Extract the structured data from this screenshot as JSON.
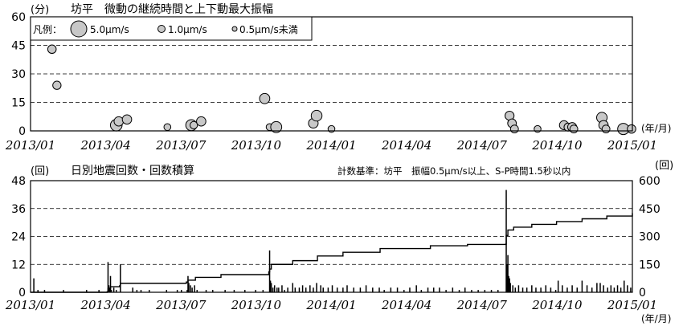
{
  "chart_data": [
    {
      "type": "scatter",
      "unit_label": "(分)",
      "title": "坊平　微動の継続時間と上下動最大振幅",
      "ylim": [
        0,
        60
      ],
      "yticks": [
        0,
        15,
        30,
        45,
        60
      ],
      "x_axis_unit": "(年/月)",
      "x_tick_labels": [
        "2013/01",
        "2013/04",
        "2013/07",
        "2013/10",
        "2014/01",
        "2014/04",
        "2014/07",
        "2014/10",
        "2015/01"
      ],
      "xlim": [
        "2013-01-01",
        "2015-01-01"
      ],
      "grid": "dashed-horizontal",
      "legend": {
        "prefix": "凡例：",
        "items": [
          {
            "label": "5.0μm/s",
            "amplitude": 5.0
          },
          {
            "label": "1.0μm/s",
            "amplitude": 1.0
          },
          {
            "label": "0.5μm/s未満",
            "amplitude": 0.5
          }
        ],
        "placement": "top-left"
      },
      "points": [
        {
          "date": "2013-01-27",
          "duration": 43,
          "amplitude": 1.3
        },
        {
          "date": "2013-02-02",
          "duration": 24,
          "amplitude": 1.2
        },
        {
          "date": "2013-04-15",
          "duration": 3,
          "amplitude": 3.5
        },
        {
          "date": "2013-04-18",
          "duration": 5,
          "amplitude": 1.8
        },
        {
          "date": "2013-04-28",
          "duration": 6,
          "amplitude": 1.8
        },
        {
          "date": "2013-06-16",
          "duration": 2,
          "amplitude": 0.6
        },
        {
          "date": "2013-07-15",
          "duration": 3,
          "amplitude": 3.0
        },
        {
          "date": "2013-07-18",
          "duration": 3,
          "amplitude": 0.8
        },
        {
          "date": "2013-07-27",
          "duration": 5,
          "amplitude": 1.8
        },
        {
          "date": "2013-10-12",
          "duration": 17,
          "amplitude": 2.4
        },
        {
          "date": "2013-10-18",
          "duration": 2,
          "amplitude": 0.6
        },
        {
          "date": "2013-10-26",
          "duration": 2,
          "amplitude": 3.0
        },
        {
          "date": "2013-12-10",
          "duration": 4,
          "amplitude": 2.0
        },
        {
          "date": "2013-12-14",
          "duration": 8,
          "amplitude": 2.8
        },
        {
          "date": "2014-01-01",
          "duration": 1,
          "amplitude": 0.6
        },
        {
          "date": "2014-08-05",
          "duration": 8,
          "amplitude": 1.6
        },
        {
          "date": "2014-08-08",
          "duration": 4,
          "amplitude": 1.4
        },
        {
          "date": "2014-08-11",
          "duration": 1,
          "amplitude": 1.0
        },
        {
          "date": "2014-09-08",
          "duration": 1,
          "amplitude": 0.6
        },
        {
          "date": "2014-10-10",
          "duration": 3,
          "amplitude": 1.6
        },
        {
          "date": "2014-10-15",
          "duration": 2,
          "amplitude": 1.1
        },
        {
          "date": "2014-10-20",
          "duration": 2,
          "amplitude": 1.6
        },
        {
          "date": "2014-10-22",
          "duration": 1,
          "amplitude": 1.0
        },
        {
          "date": "2014-11-25",
          "duration": 7,
          "amplitude": 2.6
        },
        {
          "date": "2014-11-27",
          "duration": 3,
          "amplitude": 1.8
        },
        {
          "date": "2014-11-30",
          "duration": 1,
          "amplitude": 1.0
        },
        {
          "date": "2014-12-21",
          "duration": 1,
          "amplitude": 3.2
        },
        {
          "date": "2014-12-31",
          "duration": 1,
          "amplitude": 1.3
        }
      ]
    },
    {
      "type": "bar+line",
      "unit_label_left": "(回)",
      "unit_label_right": "(回)",
      "title": "日別地震回数・回数積算",
      "criteria": "計数基準：坊平　振幅0.5μm/s以上、S-P時間1.5秒以内",
      "ylim_left": [
        0,
        48
      ],
      "yticks_left": [
        0,
        12,
        24,
        36,
        48
      ],
      "ylim_right": [
        0,
        600
      ],
      "yticks_right": [
        0,
        150,
        300,
        450,
        600
      ],
      "x_axis_unit": "(年/月)",
      "x_tick_labels": [
        "2013/01",
        "2013/04",
        "2013/07",
        "2013/10",
        "2014/01",
        "2014/04",
        "2014/07",
        "2014/10",
        "2015/01"
      ],
      "xlim": [
        "2013-01-01",
        "2015-01-01"
      ],
      "grid": "dashed-horizontal",
      "daily_counts": [
        [
          "2013-01-05",
          6
        ],
        [
          "2013-01-10",
          1
        ],
        [
          "2013-01-18",
          1
        ],
        [
          "2013-02-10",
          1
        ],
        [
          "2013-03-10",
          1
        ],
        [
          "2013-03-25",
          1
        ],
        [
          "2013-04-05",
          13
        ],
        [
          "2013-04-06",
          3
        ],
        [
          "2013-04-07",
          2
        ],
        [
          "2013-04-08",
          7
        ],
        [
          "2013-04-09",
          1
        ],
        [
          "2013-04-12",
          2
        ],
        [
          "2013-04-15",
          1
        ],
        [
          "2013-04-20",
          12
        ],
        [
          "2013-05-05",
          2
        ],
        [
          "2013-05-10",
          1
        ],
        [
          "2013-05-15",
          1
        ],
        [
          "2013-05-25",
          1
        ],
        [
          "2013-06-15",
          1
        ],
        [
          "2013-06-28",
          1
        ],
        [
          "2013-07-03",
          1
        ],
        [
          "2013-07-10",
          1
        ],
        [
          "2013-07-11",
          7
        ],
        [
          "2013-07-12",
          4
        ],
        [
          "2013-07-14",
          3
        ],
        [
          "2013-07-16",
          2
        ],
        [
          "2013-07-19",
          3
        ],
        [
          "2013-07-22",
          1
        ],
        [
          "2013-08-02",
          1
        ],
        [
          "2013-08-10",
          1
        ],
        [
          "2013-08-25",
          1
        ],
        [
          "2013-09-05",
          1
        ],
        [
          "2013-09-18",
          1
        ],
        [
          "2013-10-01",
          1
        ],
        [
          "2013-10-10",
          1
        ],
        [
          "2013-10-18",
          18
        ],
        [
          "2013-10-19",
          5
        ],
        [
          "2013-10-20",
          4
        ],
        [
          "2013-10-22",
          2
        ],
        [
          "2013-10-24",
          3
        ],
        [
          "2013-10-27",
          2
        ],
        [
          "2013-10-29",
          2
        ],
        [
          "2013-11-02",
          3
        ],
        [
          "2013-11-05",
          1
        ],
        [
          "2013-11-09",
          2
        ],
        [
          "2013-11-15",
          4
        ],
        [
          "2013-11-18",
          2
        ],
        [
          "2013-11-23",
          2
        ],
        [
          "2013-11-27",
          3
        ],
        [
          "2013-12-01",
          2
        ],
        [
          "2013-12-06",
          3
        ],
        [
          "2013-12-10",
          2
        ],
        [
          "2013-12-14",
          4
        ],
        [
          "2013-12-19",
          3
        ],
        [
          "2013-12-22",
          2
        ],
        [
          "2013-12-28",
          2
        ],
        [
          "2014-01-02",
          3
        ],
        [
          "2014-01-08",
          2
        ],
        [
          "2014-01-15",
          2
        ],
        [
          "2014-01-20",
          3
        ],
        [
          "2014-01-28",
          2
        ],
        [
          "2014-02-05",
          2
        ],
        [
          "2014-02-12",
          3
        ],
        [
          "2014-02-20",
          2
        ],
        [
          "2014-02-28",
          2
        ],
        [
          "2014-03-06",
          1
        ],
        [
          "2014-03-14",
          2
        ],
        [
          "2014-03-22",
          2
        ],
        [
          "2014-03-30",
          1
        ],
        [
          "2014-04-06",
          2
        ],
        [
          "2014-04-14",
          3
        ],
        [
          "2014-04-20",
          1
        ],
        [
          "2014-04-28",
          2
        ],
        [
          "2014-05-05",
          2
        ],
        [
          "2014-05-12",
          2
        ],
        [
          "2014-05-20",
          1
        ],
        [
          "2014-05-28",
          2
        ],
        [
          "2014-06-05",
          1
        ],
        [
          "2014-06-12",
          2
        ],
        [
          "2014-06-20",
          1
        ],
        [
          "2014-06-28",
          1
        ],
        [
          "2014-07-06",
          1
        ],
        [
          "2014-07-14",
          1
        ],
        [
          "2014-07-22",
          1
        ],
        [
          "2014-08-01",
          44
        ],
        [
          "2014-08-02",
          12
        ],
        [
          "2014-08-03",
          16
        ],
        [
          "2014-08-04",
          7
        ],
        [
          "2014-08-05",
          6
        ],
        [
          "2014-08-06",
          4
        ],
        [
          "2014-08-09",
          3
        ],
        [
          "2014-08-12",
          2
        ],
        [
          "2014-08-16",
          3
        ],
        [
          "2014-08-21",
          2
        ],
        [
          "2014-08-26",
          2
        ],
        [
          "2014-09-01",
          3
        ],
        [
          "2014-09-06",
          2
        ],
        [
          "2014-09-12",
          2
        ],
        [
          "2014-09-18",
          3
        ],
        [
          "2014-09-24",
          2
        ],
        [
          "2014-09-30",
          1
        ],
        [
          "2014-10-03",
          5
        ],
        [
          "2014-10-08",
          3
        ],
        [
          "2014-10-14",
          2
        ],
        [
          "2014-10-20",
          3
        ],
        [
          "2014-10-26",
          2
        ],
        [
          "2014-11-01",
          5
        ],
        [
          "2014-11-07",
          3
        ],
        [
          "2014-11-13",
          2
        ],
        [
          "2014-11-19",
          4
        ],
        [
          "2014-11-23",
          4
        ],
        [
          "2014-11-27",
          3
        ],
        [
          "2014-12-02",
          2
        ],
        [
          "2014-12-06",
          3
        ],
        [
          "2014-12-10",
          2
        ],
        [
          "2014-12-14",
          3
        ],
        [
          "2014-12-18",
          2
        ],
        [
          "2014-12-22",
          5
        ],
        [
          "2014-12-26",
          3
        ],
        [
          "2014-12-30",
          2
        ]
      ],
      "cumulative": [
        [
          "2013-01-01",
          0
        ],
        [
          "2013-04-04",
          3
        ],
        [
          "2013-04-05",
          20
        ],
        [
          "2013-04-08",
          30
        ],
        [
          "2013-04-19",
          35
        ],
        [
          "2013-04-20",
          48
        ],
        [
          "2013-07-09",
          55
        ],
        [
          "2013-07-11",
          65
        ],
        [
          "2013-07-20",
          80
        ],
        [
          "2013-08-20",
          95
        ],
        [
          "2013-10-17",
          110
        ],
        [
          "2013-10-18",
          125
        ],
        [
          "2013-10-20",
          150
        ],
        [
          "2013-11-15",
          170
        ],
        [
          "2013-12-15",
          195
        ],
        [
          "2014-01-15",
          215
        ],
        [
          "2014-03-01",
          235
        ],
        [
          "2014-05-01",
          250
        ],
        [
          "2014-06-15",
          257
        ],
        [
          "2014-07-31",
          258
        ],
        [
          "2014-08-01",
          305
        ],
        [
          "2014-08-03",
          335
        ],
        [
          "2014-08-10",
          350
        ],
        [
          "2014-09-01",
          365
        ],
        [
          "2014-10-01",
          380
        ],
        [
          "2014-11-01",
          395
        ],
        [
          "2014-12-01",
          410
        ],
        [
          "2015-01-01",
          425
        ]
      ]
    }
  ]
}
